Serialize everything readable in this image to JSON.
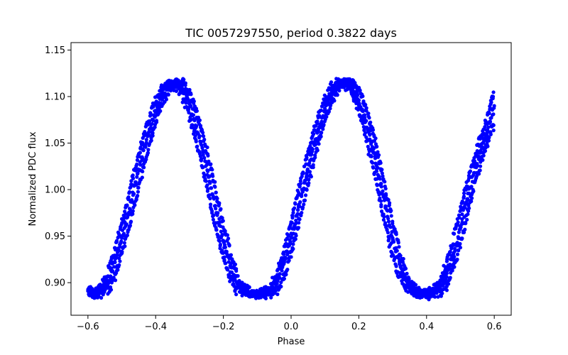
{
  "chart_data": {
    "type": "scatter",
    "title": "TIC 0057297550, period 0.3822 days",
    "xlabel": "Phase",
    "ylabel": "Normalized PDC flux",
    "xlim": [
      -0.65,
      0.65
    ],
    "ylim": [
      0.865,
      1.158
    ],
    "xticks": [
      -0.6,
      -0.4,
      -0.2,
      0.0,
      0.2,
      0.4,
      0.6
    ],
    "xtick_labels": [
      "−0.6",
      "−0.4",
      "−0.2",
      "0.0",
      "0.2",
      "0.4",
      "0.6"
    ],
    "yticks": [
      0.9,
      0.95,
      1.0,
      1.05,
      1.1,
      1.15
    ],
    "ytick_labels": [
      "0.90",
      "0.95",
      "1.00",
      "1.05",
      "1.10",
      "1.15"
    ],
    "grid": false,
    "legend": "none",
    "marker_color": "#0000ff",
    "period_days": 0.3822,
    "x_range": [
      -0.6,
      0.6
    ],
    "series": [
      {
        "values": [
          {
            "x": -0.6,
            "y": 0.891
          },
          {
            "x": -0.58,
            "y": 0.888
          },
          {
            "x": -0.56,
            "y": 0.893
          },
          {
            "x": -0.54,
            "y": 0.902
          },
          {
            "x": -0.52,
            "y": 0.922
          },
          {
            "x": -0.5,
            "y": 0.948
          },
          {
            "x": -0.48,
            "y": 0.975
          },
          {
            "x": -0.46,
            "y": 1.005
          },
          {
            "x": -0.44,
            "y": 1.035
          },
          {
            "x": -0.42,
            "y": 1.062
          },
          {
            "x": -0.4,
            "y": 1.085
          },
          {
            "x": -0.38,
            "y": 1.102
          },
          {
            "x": -0.36,
            "y": 1.112
          },
          {
            "x": -0.34,
            "y": 1.114
          },
          {
            "x": -0.32,
            "y": 1.108
          },
          {
            "x": -0.3,
            "y": 1.092
          },
          {
            "x": -0.28,
            "y": 1.068
          },
          {
            "x": -0.26,
            "y": 1.04
          },
          {
            "x": -0.24,
            "y": 1.008
          },
          {
            "x": -0.22,
            "y": 0.975
          },
          {
            "x": -0.2,
            "y": 0.945
          },
          {
            "x": -0.18,
            "y": 0.918
          },
          {
            "x": -0.16,
            "y": 0.9
          },
          {
            "x": -0.14,
            "y": 0.892
          },
          {
            "x": -0.12,
            "y": 0.889
          },
          {
            "x": -0.1,
            "y": 0.888
          },
          {
            "x": -0.08,
            "y": 0.889
          },
          {
            "x": -0.06,
            "y": 0.892
          },
          {
            "x": -0.04,
            "y": 0.902
          },
          {
            "x": -0.02,
            "y": 0.922
          },
          {
            "x": 0.0,
            "y": 0.948
          },
          {
            "x": 0.02,
            "y": 0.978
          },
          {
            "x": 0.04,
            "y": 1.008
          },
          {
            "x": 0.06,
            "y": 1.038
          },
          {
            "x": 0.08,
            "y": 1.064
          },
          {
            "x": 0.1,
            "y": 1.086
          },
          {
            "x": 0.12,
            "y": 1.102
          },
          {
            "x": 0.14,
            "y": 1.112
          },
          {
            "x": 0.16,
            "y": 1.115
          },
          {
            "x": 0.18,
            "y": 1.11
          },
          {
            "x": 0.2,
            "y": 1.096
          },
          {
            "x": 0.22,
            "y": 1.074
          },
          {
            "x": 0.24,
            "y": 1.046
          },
          {
            "x": 0.26,
            "y": 1.014
          },
          {
            "x": 0.28,
            "y": 0.98
          },
          {
            "x": 0.3,
            "y": 0.948
          },
          {
            "x": 0.32,
            "y": 0.92
          },
          {
            "x": 0.34,
            "y": 0.902
          },
          {
            "x": 0.36,
            "y": 0.893
          },
          {
            "x": 0.38,
            "y": 0.889
          },
          {
            "x": 0.4,
            "y": 0.888
          },
          {
            "x": 0.42,
            "y": 0.89
          },
          {
            "x": 0.44,
            "y": 0.896
          },
          {
            "x": 0.46,
            "y": 0.91
          },
          {
            "x": 0.48,
            "y": 0.932
          },
          {
            "x": 0.5,
            "y": 0.96
          },
          {
            "x": 0.52,
            "y": 0.99
          },
          {
            "x": 0.54,
            "y": 1.018
          },
          {
            "x": 0.56,
            "y": 1.042
          },
          {
            "x": 0.58,
            "y": 1.064
          },
          {
            "x": 0.6,
            "y": 1.09
          }
        ]
      }
    ]
  }
}
